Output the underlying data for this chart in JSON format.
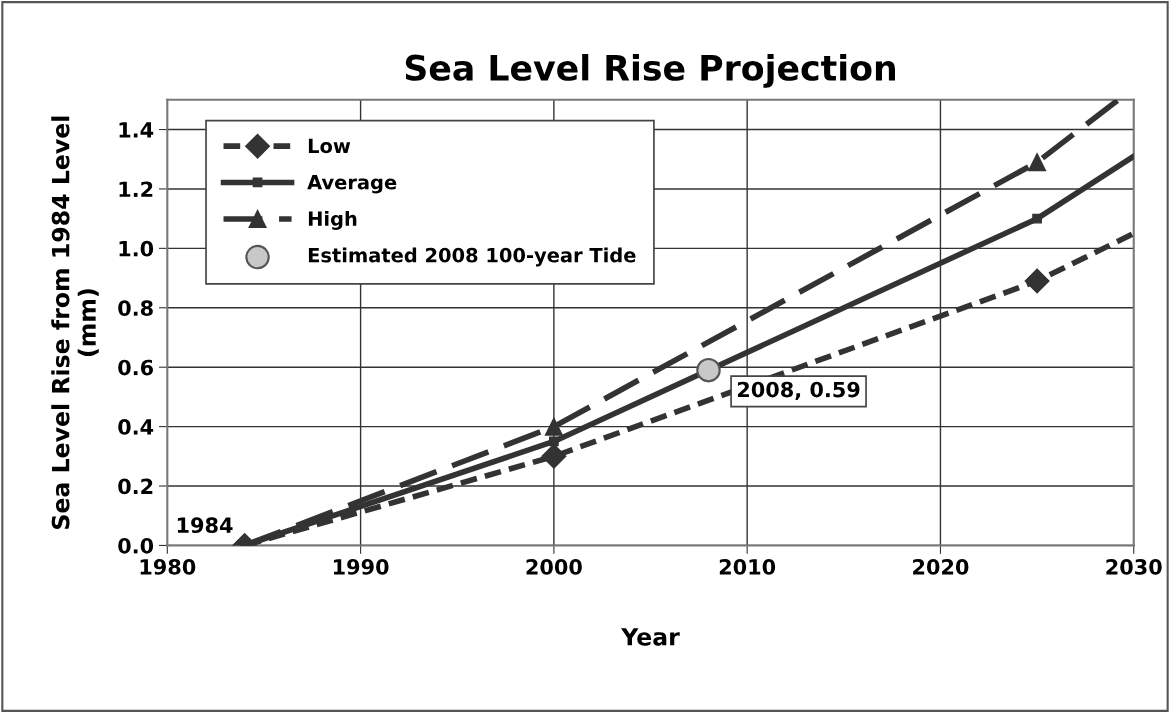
{
  "chart_data": {
    "type": "line",
    "title": "Sea Level Rise Projection",
    "xlabel": "Year",
    "ylabel": "Sea Level Rise from 1984 Level\n(mm)",
    "xlim": [
      1980,
      2030
    ],
    "xticks": [
      1980,
      1990,
      2000,
      2010,
      2020,
      2030
    ],
    "ylim": [
      0,
      1.5
    ],
    "yticks": [
      {
        "value": 0,
        "label": "0.0"
      },
      {
        "value": 0.2,
        "label": "0.2"
      },
      {
        "value": 0.4,
        "label": "0.4"
      },
      {
        "value": 0.6,
        "label": "0.6"
      },
      {
        "value": 0.8,
        "label": "0.8"
      },
      {
        "value": 1.0,
        "label": "1.0"
      },
      {
        "value": 1.2,
        "label": "1.2"
      },
      {
        "value": 1.4,
        "label": "1.4"
      }
    ],
    "grid": true,
    "legend": "top left",
    "series": [
      {
        "name": "Low",
        "color": "#333333",
        "x": [
          1984,
          2000,
          2025,
          2030
        ],
        "values": [
          0,
          0.3,
          0.89,
          1.05
        ],
        "marker": "diamond",
        "line_style": "dashed"
      },
      {
        "name": "Average",
        "color": "#333333",
        "x": [
          1984,
          2000,
          2025,
          2030
        ],
        "values": [
          0,
          0.35,
          1.1,
          1.31
        ],
        "marker": "square",
        "line_style": "solid"
      },
      {
        "name": "High",
        "color": "#333333",
        "x": [
          1984,
          2000,
          2025,
          2029.2
        ],
        "values": [
          0,
          0.4,
          1.29,
          1.5
        ],
        "marker": "triangle",
        "line_style": "dashed"
      },
      {
        "name": "Estimated 2008 100-year Tide",
        "type": "scatter",
        "color": "#c8c8c8",
        "x": [
          2008
        ],
        "values": [
          0.59
        ],
        "marker": "circle"
      }
    ],
    "annotations": [
      {
        "text": "1984",
        "x": 1984,
        "y": 0
      },
      {
        "text": "2008, 0.59",
        "x": 2008,
        "y": 0.59
      }
    ]
  }
}
